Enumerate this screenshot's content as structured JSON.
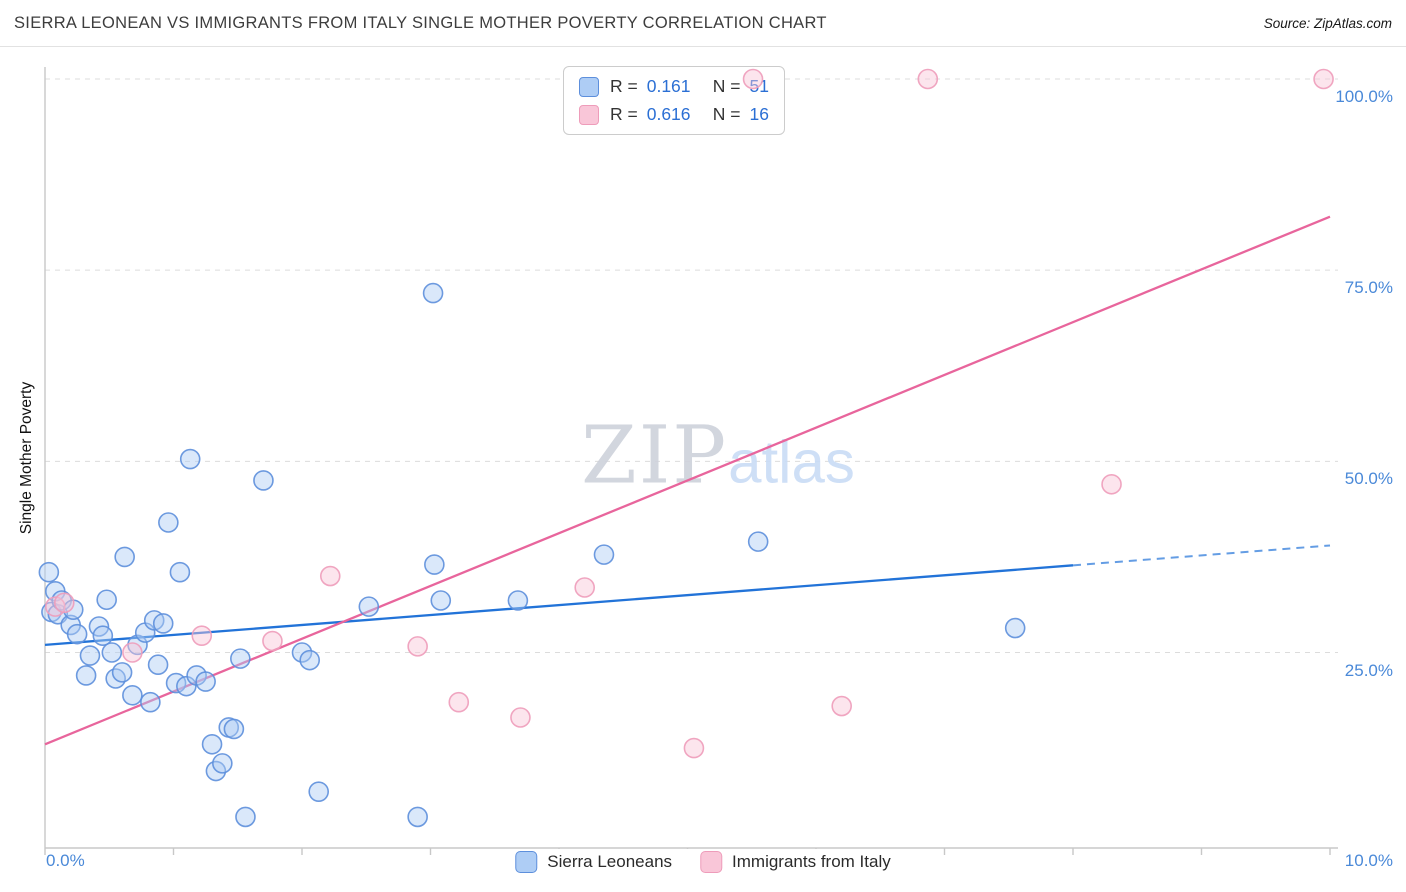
{
  "header": {
    "title": "SIERRA LEONEAN VS IMMIGRANTS FROM ITALY SINGLE MOTHER POVERTY CORRELATION CHART",
    "source": "Source: ZipAtlas.com"
  },
  "watermark": {
    "zip": "ZIP",
    "atlas": "atlas"
  },
  "chart_data": {
    "type": "scatter",
    "title": "SIERRA LEONEAN VS IMMIGRANTS FROM ITALY SINGLE MOTHER POVERTY CORRELATION CHART",
    "xlabel": "",
    "ylabel": "Single Mother Poverty",
    "grid": "horizontal dashed gridlines at 25/50/75/100",
    "legend_position": "bottom center",
    "x_axis": {
      "min": 0,
      "max": 10,
      "left_tick_label": "0.0%",
      "right_tick_label": "10.0%",
      "unit": "%"
    },
    "y_axis": {
      "min": 0,
      "max": 100,
      "unit": "%",
      "ticks": [
        {
          "value": 100,
          "label": "100.0%"
        },
        {
          "value": 75,
          "label": "75.0%"
        },
        {
          "value": 50,
          "label": "50.0%"
        },
        {
          "value": 25,
          "label": "25.0%"
        }
      ]
    },
    "correlation_box": {
      "rows": [
        {
          "r_label": "R =",
          "r_value": "0.161",
          "n_label": "N =",
          "n_value": "51"
        },
        {
          "r_label": "R =",
          "r_value": "0.616",
          "n_label": "N =",
          "n_value": "16"
        }
      ]
    },
    "series": [
      {
        "name": "Sierra Leoneans",
        "point_fill": "#aecdf5",
        "point_stroke": "#5d8fdc",
        "trend_color": "#2273d8",
        "trend": {
          "x_start": 0,
          "y_start": 26,
          "x_end": 10,
          "y_end": 39,
          "solid_until_x": 8,
          "style": "solid then dashed"
        },
        "points": [
          [
            0.03,
            35.5
          ],
          [
            0.05,
            30.3
          ],
          [
            0.08,
            33.0
          ],
          [
            0.1,
            30.0
          ],
          [
            0.13,
            31.8
          ],
          [
            0.2,
            28.6
          ],
          [
            0.22,
            30.6
          ],
          [
            0.25,
            27.4
          ],
          [
            0.32,
            22.0
          ],
          [
            0.35,
            24.6
          ],
          [
            0.42,
            28.4
          ],
          [
            0.45,
            27.2
          ],
          [
            0.48,
            31.9
          ],
          [
            0.52,
            25.0
          ],
          [
            0.55,
            21.6
          ],
          [
            0.6,
            22.4
          ],
          [
            0.62,
            37.5
          ],
          [
            0.68,
            19.4
          ],
          [
            0.72,
            26.0
          ],
          [
            0.78,
            27.6
          ],
          [
            0.82,
            18.5
          ],
          [
            0.85,
            29.2
          ],
          [
            0.88,
            23.4
          ],
          [
            0.92,
            28.8
          ],
          [
            0.96,
            42.0
          ],
          [
            1.02,
            21.0
          ],
          [
            1.05,
            35.5
          ],
          [
            1.1,
            20.6
          ],
          [
            1.13,
            50.3
          ],
          [
            1.18,
            22.0
          ],
          [
            1.25,
            21.2
          ],
          [
            1.3,
            13.0
          ],
          [
            1.33,
            9.5
          ],
          [
            1.38,
            10.5
          ],
          [
            1.43,
            15.2
          ],
          [
            1.47,
            15.0
          ],
          [
            1.52,
            24.2
          ],
          [
            1.56,
            3.5
          ],
          [
            1.7,
            47.5
          ],
          [
            2.0,
            25.0
          ],
          [
            2.06,
            24.0
          ],
          [
            2.13,
            6.8
          ],
          [
            2.52,
            31.0
          ],
          [
            2.9,
            3.5
          ],
          [
            3.02,
            72.0
          ],
          [
            3.03,
            36.5
          ],
          [
            3.08,
            31.8
          ],
          [
            3.68,
            31.8
          ],
          [
            4.35,
            37.8
          ],
          [
            5.55,
            39.5
          ],
          [
            7.55,
            28.2
          ]
        ]
      },
      {
        "name": "Immigrants from Italy",
        "point_fill": "#f9c6d8",
        "point_stroke": "#ee9cba",
        "trend_color": "#e8659c",
        "trend": {
          "x_start": 0,
          "y_start": 13,
          "x_end": 10,
          "y_end": 82,
          "style": "solid"
        },
        "points": [
          [
            0.08,
            31.0
          ],
          [
            0.15,
            31.5
          ],
          [
            0.68,
            25.0
          ],
          [
            1.22,
            27.2
          ],
          [
            1.77,
            26.5
          ],
          [
            2.22,
            35.0
          ],
          [
            2.9,
            25.8
          ],
          [
            3.22,
            18.5
          ],
          [
            3.7,
            16.5
          ],
          [
            4.2,
            33.5
          ],
          [
            5.05,
            12.5
          ],
          [
            5.51,
            100.0
          ],
          [
            6.2,
            18.0
          ],
          [
            6.87,
            100.0
          ],
          [
            8.3,
            47.0
          ],
          [
            9.95,
            100.0
          ]
        ]
      }
    ]
  },
  "bottom_legend": {
    "items": [
      {
        "label": "Sierra Leoneans"
      },
      {
        "label": "Immigrants from Italy"
      }
    ]
  }
}
